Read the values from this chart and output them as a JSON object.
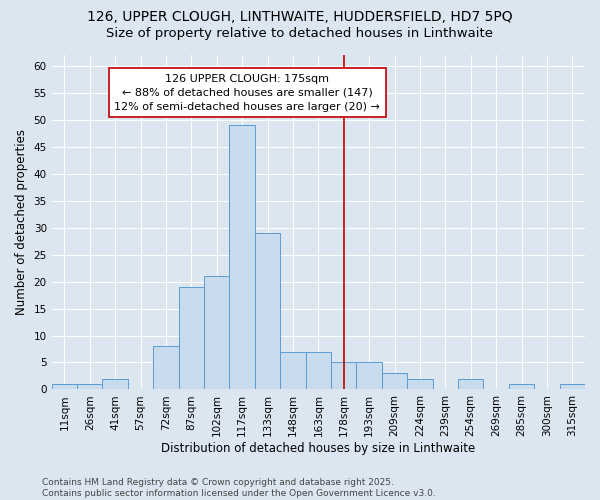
{
  "title_line1": "126, UPPER CLOUGH, LINTHWAITE, HUDDERSFIELD, HD7 5PQ",
  "title_line2": "Size of property relative to detached houses in Linthwaite",
  "xlabel": "Distribution of detached houses by size in Linthwaite",
  "ylabel": "Number of detached properties",
  "bar_labels": [
    "11sqm",
    "26sqm",
    "41sqm",
    "57sqm",
    "72sqm",
    "87sqm",
    "102sqm",
    "117sqm",
    "133sqm",
    "148sqm",
    "163sqm",
    "178sqm",
    "193sqm",
    "209sqm",
    "224sqm",
    "239sqm",
    "254sqm",
    "269sqm",
    "285sqm",
    "300sqm",
    "315sqm"
  ],
  "bar_values": [
    1,
    1,
    2,
    0,
    8,
    19,
    21,
    49,
    29,
    7,
    7,
    5,
    5,
    3,
    2,
    0,
    2,
    0,
    1,
    0,
    1
  ],
  "bar_color": "#c9dcee",
  "bar_edge_color": "#5b9bd5",
  "vline_index": 11,
  "vline_color": "#c00000",
  "annotation_line1": "126 UPPER CLOUGH: 175sqm",
  "annotation_line2": "← 88% of detached houses are smaller (147)",
  "annotation_line3": "12% of semi-detached houses are larger (20) →",
  "annotation_box_color": "#ffffff",
  "annotation_edge_color": "#c00000",
  "ylim": [
    0,
    62
  ],
  "yticks": [
    0,
    5,
    10,
    15,
    20,
    25,
    30,
    35,
    40,
    45,
    50,
    55,
    60
  ],
  "bg_color": "#dce6f1",
  "grid_color": "#ffffff",
  "footer_line1": "Contains HM Land Registry data © Crown copyright and database right 2025.",
  "footer_line2": "Contains public sector information licensed under the Open Government Licence v3.0.",
  "title_fontsize": 10,
  "subtitle_fontsize": 9.5,
  "axis_label_fontsize": 8.5,
  "tick_fontsize": 7.5,
  "annotation_fontsize": 8,
  "footer_fontsize": 6.5
}
